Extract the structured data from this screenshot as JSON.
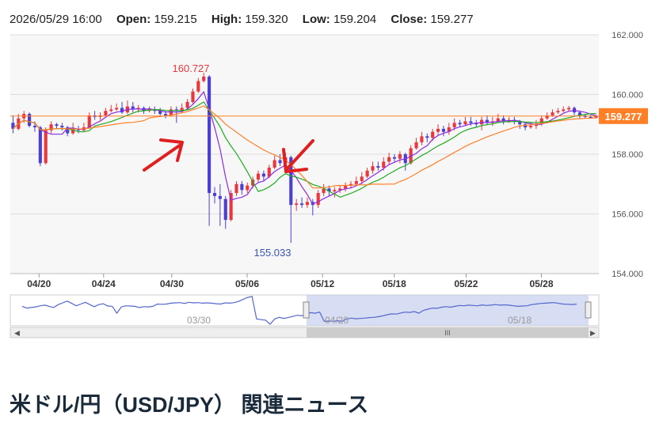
{
  "ohlc_bar": {
    "datetime": "2026/05/29 16:00",
    "open_label": "Open:",
    "open": "159.215",
    "high_label": "High:",
    "high": "159.320",
    "low_label": "Low:",
    "low": "159.204",
    "close_label": "Close:",
    "close": "159.277"
  },
  "news_heading": "米ドル/円（USD/JPY） 関連ニュース",
  "colors": {
    "up": "#e8373d",
    "down": "#4a3fd1",
    "ma_short": "#8a2be2",
    "ma_mid": "#22aa22",
    "ma_long": "#ff7f27",
    "price_line": "#ff7f27",
    "grid": "#dddddd",
    "plot_bg": "#f7f7f7",
    "arrow": "#e02020",
    "navigator_fill": "#c9d2ef",
    "navigator_line": "#5566cc"
  },
  "chart_data": {
    "type": "candlestick",
    "ylim": [
      154,
      162
    ],
    "y_ticks": [
      "154.000",
      "156.000",
      "158.000",
      "160.000",
      "162.000"
    ],
    "x_ticks": [
      "04/20",
      "04/24",
      "04/30",
      "05/06",
      "05/12",
      "05/18",
      "05/22",
      "05/28"
    ],
    "current_price": "159.277",
    "high_annotation": "160.727",
    "low_annotation": "155.033",
    "candles": [
      [
        159.05,
        158.85,
        159.3,
        158.7
      ],
      [
        158.85,
        159.2,
        159.35,
        158.8
      ],
      [
        159.2,
        159.35,
        159.45,
        159.05
      ],
      [
        159.35,
        158.95,
        159.4,
        158.9
      ],
      [
        158.95,
        158.9,
        159.1,
        158.75
      ],
      [
        158.9,
        157.7,
        158.95,
        157.6
      ],
      [
        157.7,
        158.8,
        158.9,
        157.65
      ],
      [
        158.8,
        159.0,
        159.1,
        158.7
      ],
      [
        159.0,
        158.95,
        159.05,
        158.85
      ],
      [
        158.95,
        158.9,
        159.05,
        158.8
      ],
      [
        158.9,
        158.7,
        158.95,
        158.6
      ],
      [
        158.7,
        158.85,
        159.05,
        158.65
      ],
      [
        158.85,
        158.8,
        158.95,
        158.7
      ],
      [
        158.8,
        158.9,
        159.05,
        158.75
      ],
      [
        158.9,
        159.3,
        159.4,
        158.85
      ],
      [
        159.3,
        159.25,
        159.45,
        159.15
      ],
      [
        159.25,
        159.3,
        159.4,
        159.15
      ],
      [
        159.3,
        159.45,
        159.55,
        159.25
      ],
      [
        159.45,
        159.5,
        159.65,
        159.4
      ],
      [
        159.5,
        159.55,
        159.7,
        159.45
      ],
      [
        159.55,
        159.4,
        159.75,
        159.35
      ],
      [
        159.4,
        159.6,
        159.8,
        159.35
      ],
      [
        159.6,
        159.5,
        159.75,
        159.4
      ],
      [
        159.5,
        159.55,
        159.65,
        159.4
      ],
      [
        159.55,
        159.45,
        159.6,
        159.35
      ],
      [
        159.45,
        159.5,
        159.6,
        159.4
      ],
      [
        159.5,
        159.45,
        159.6,
        159.35
      ],
      [
        159.45,
        159.35,
        159.55,
        159.25
      ],
      [
        159.35,
        159.3,
        159.45,
        159.2
      ],
      [
        159.3,
        159.5,
        159.6,
        159.25
      ],
      [
        159.5,
        159.45,
        159.6,
        159.05
      ],
      [
        159.45,
        159.55,
        159.7,
        159.4
      ],
      [
        159.55,
        159.75,
        159.85,
        159.5
      ],
      [
        159.75,
        160.1,
        160.2,
        159.7
      ],
      [
        160.1,
        160.45,
        160.55,
        160.05
      ],
      [
        160.45,
        160.6,
        160.73,
        160.4
      ],
      [
        160.6,
        156.7,
        160.65,
        155.6
      ],
      [
        156.7,
        156.6,
        156.9,
        156.35
      ],
      [
        156.6,
        156.5,
        157.0,
        155.6
      ],
      [
        156.5,
        155.8,
        156.6,
        155.5
      ],
      [
        155.8,
        156.7,
        156.8,
        155.75
      ],
      [
        156.7,
        157.0,
        157.1,
        156.6
      ],
      [
        157.0,
        156.8,
        157.1,
        156.65
      ],
      [
        156.8,
        156.95,
        157.05,
        156.7
      ],
      [
        156.95,
        157.15,
        157.25,
        156.85
      ],
      [
        157.15,
        157.35,
        157.45,
        157.05
      ],
      [
        157.35,
        157.25,
        157.45,
        157.1
      ],
      [
        157.25,
        157.55,
        157.65,
        157.2
      ],
      [
        157.55,
        157.8,
        157.95,
        157.5
      ],
      [
        157.8,
        157.7,
        158.0,
        157.6
      ],
      [
        157.7,
        157.9,
        158.05,
        157.6
      ],
      [
        157.9,
        156.3,
        157.95,
        155.03
      ],
      [
        156.3,
        156.35,
        156.5,
        156.1
      ],
      [
        156.35,
        156.3,
        156.55,
        156.2
      ],
      [
        156.3,
        156.4,
        156.55,
        156.2
      ],
      [
        156.4,
        156.3,
        156.5,
        155.95
      ],
      [
        156.3,
        156.7,
        156.8,
        156.2
      ],
      [
        156.7,
        156.85,
        157.0,
        156.6
      ],
      [
        156.85,
        156.75,
        156.95,
        156.6
      ],
      [
        156.75,
        156.8,
        156.9,
        156.55
      ],
      [
        156.8,
        156.85,
        156.95,
        156.7
      ],
      [
        156.85,
        156.95,
        157.05,
        156.75
      ],
      [
        156.95,
        157.0,
        157.1,
        156.85
      ],
      [
        157.0,
        157.1,
        157.25,
        156.95
      ],
      [
        157.1,
        157.25,
        157.4,
        157.0
      ],
      [
        157.25,
        157.45,
        157.55,
        157.2
      ],
      [
        157.45,
        157.6,
        157.75,
        157.35
      ],
      [
        157.6,
        157.55,
        157.75,
        157.45
      ],
      [
        157.55,
        157.75,
        157.9,
        157.45
      ],
      [
        157.75,
        157.9,
        158.05,
        157.65
      ],
      [
        157.9,
        157.85,
        158.0,
        157.75
      ],
      [
        157.85,
        158.0,
        158.1,
        157.7
      ],
      [
        158.0,
        157.7,
        158.05,
        157.45
      ],
      [
        157.7,
        158.2,
        158.3,
        157.65
      ],
      [
        158.2,
        158.4,
        158.55,
        158.15
      ],
      [
        158.4,
        158.6,
        158.75,
        158.3
      ],
      [
        158.6,
        158.55,
        158.7,
        158.4
      ],
      [
        158.55,
        158.75,
        158.85,
        158.45
      ],
      [
        158.75,
        158.85,
        159.0,
        158.65
      ],
      [
        158.85,
        158.75,
        158.95,
        158.6
      ],
      [
        158.75,
        158.9,
        159.05,
        158.65
      ],
      [
        158.9,
        159.05,
        159.2,
        158.8
      ],
      [
        159.05,
        159.0,
        159.15,
        158.9
      ],
      [
        159.0,
        159.1,
        159.25,
        158.95
      ],
      [
        159.1,
        159.05,
        159.25,
        158.95
      ],
      [
        159.05,
        159.0,
        159.15,
        158.9
      ],
      [
        159.0,
        159.15,
        159.25,
        158.8
      ],
      [
        159.15,
        159.05,
        159.3,
        159.0
      ],
      [
        159.05,
        159.1,
        159.25,
        158.95
      ],
      [
        159.1,
        159.2,
        159.35,
        159.05
      ],
      [
        159.2,
        159.1,
        159.3,
        159.0
      ],
      [
        159.1,
        159.15,
        159.25,
        159.05
      ],
      [
        159.15,
        159.1,
        159.25,
        159.0
      ],
      [
        159.1,
        159.0,
        159.15,
        158.85
      ],
      [
        159.0,
        158.9,
        159.05,
        158.8
      ],
      [
        158.9,
        158.95,
        159.05,
        158.85
      ],
      [
        158.95,
        159.0,
        159.15,
        158.85
      ],
      [
        159.0,
        159.2,
        159.3,
        158.95
      ],
      [
        159.2,
        159.3,
        159.4,
        159.15
      ],
      [
        159.3,
        159.4,
        159.5,
        159.25
      ],
      [
        159.4,
        159.45,
        159.55,
        159.35
      ],
      [
        159.45,
        159.5,
        159.6,
        159.4
      ],
      [
        159.5,
        159.55,
        159.62,
        159.45
      ],
      [
        159.55,
        159.4,
        159.6,
        159.3
      ],
      [
        159.4,
        159.3,
        159.45,
        159.2
      ],
      [
        159.3,
        159.25,
        159.35,
        159.2
      ],
      [
        159.25,
        159.22,
        159.32,
        159.2
      ],
      [
        159.215,
        159.277,
        159.32,
        159.204
      ]
    ],
    "navigator_ticks": [
      "03/30",
      "04/20",
      "05/18"
    ]
  }
}
